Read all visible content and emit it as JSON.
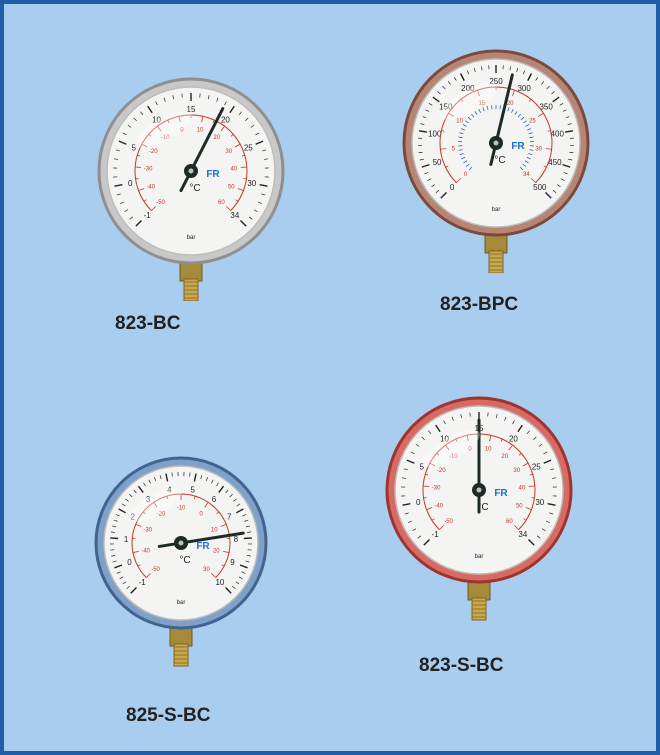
{
  "products": [
    {
      "label": "823-BC",
      "bezel": "#c8c8c8",
      "bezel_dark": "#8f8f8f",
      "outer_scale": [
        "-1",
        "0",
        "5",
        "10",
        "15",
        "20",
        "25",
        "30",
        "34"
      ],
      "inner_scale": [
        "-50",
        "-40",
        "-30",
        "-20",
        "-10",
        "0",
        "10",
        "20",
        "30",
        "40",
        "50",
        "60"
      ],
      "unit": "bar",
      "temp_unit": "°C",
      "maker": "FR"
    },
    {
      "label": "823-BPC",
      "bezel": "#b88474",
      "bezel_dark": "#7a4a3e",
      "outer_scale": [
        "0",
        "50",
        "100",
        "150",
        "200",
        "250",
        "300",
        "350",
        "400",
        "450",
        "500"
      ],
      "inner_scale": [
        "0",
        "5",
        "10",
        "15",
        "20",
        "25",
        "30",
        "34"
      ],
      "unit": "bar",
      "temp_unit": "°C",
      "maker": "FR"
    },
    {
      "label": "825-S-BC",
      "bezel": "#7fa0c8",
      "bezel_dark": "#43638f",
      "outer_scale": [
        "-1",
        "0",
        "1",
        "2",
        "3",
        "4",
        "5",
        "6",
        "7",
        "8",
        "9",
        "10"
      ],
      "inner_scale": [
        "-50",
        "-40",
        "-30",
        "-20",
        "-10",
        "0",
        "10",
        "20",
        "30"
      ],
      "unit": "bar",
      "temp_unit": "°C",
      "maker": "FR"
    },
    {
      "label": "823-S-BC",
      "bezel": "#d96a63",
      "bezel_dark": "#9c3530",
      "outer_scale": [
        "-1",
        "0",
        "5",
        "10",
        "15",
        "20",
        "25",
        "30",
        "34"
      ],
      "inner_scale": [
        "-50",
        "-40",
        "-30",
        "-20",
        "-10",
        "0",
        "10",
        "20",
        "30",
        "40",
        "50",
        "60"
      ],
      "unit": "bar",
      "temp_unit": "°C",
      "maker": "FR"
    }
  ]
}
